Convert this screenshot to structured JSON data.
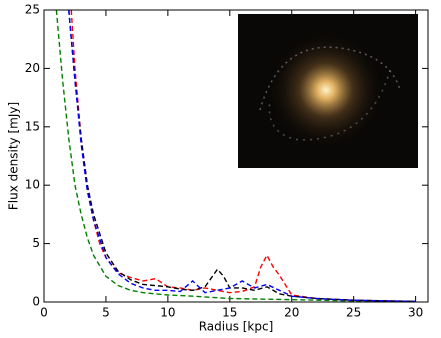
{
  "chart_data": {
    "type": "line",
    "xlabel": "Radius [kpc]",
    "ylabel": "Flux density [mJy]",
    "xlim": [
      0,
      31
    ],
    "ylim": [
      0,
      25
    ],
    "xticks": [
      0,
      5,
      10,
      15,
      20,
      25,
      30
    ],
    "yticks": [
      0,
      5,
      10,
      15,
      20,
      25
    ],
    "linestyle": "dashed",
    "series": [
      {
        "color": "#008000",
        "x": [
          1,
          1.5,
          2,
          2.5,
          3,
          3.5,
          4,
          5,
          6,
          7,
          8,
          10,
          12,
          15,
          20,
          25,
          30
        ],
        "values": [
          25,
          19,
          14,
          10,
          7.5,
          5.5,
          4,
          2.2,
          1.4,
          1.0,
          0.8,
          0.6,
          0.5,
          0.3,
          0.2,
          0.1,
          0.05
        ]
      },
      {
        "color": "#ff0000",
        "x": [
          2.2,
          2.5,
          3,
          3.5,
          4,
          4.5,
          5,
          6,
          7,
          8,
          9,
          10,
          11,
          12,
          13,
          14,
          15,
          16,
          17,
          17.5,
          18,
          18.5,
          19,
          20,
          22,
          25,
          30
        ],
        "values": [
          25,
          20,
          14,
          10,
          7,
          5,
          3.8,
          2.5,
          2.1,
          1.8,
          2,
          1.3,
          1.2,
          1,
          1.2,
          1,
          0.8,
          0.9,
          1.3,
          3,
          4,
          3,
          2.3,
          0.6,
          0.3,
          0.15,
          0.05
        ]
      },
      {
        "color": "#000000",
        "x": [
          2,
          2.5,
          3,
          3.5,
          4,
          5,
          6,
          7,
          8,
          9,
          10,
          11,
          12,
          13,
          14,
          14.5,
          15,
          16,
          17,
          18,
          19,
          20,
          22,
          25,
          30
        ],
        "values": [
          25,
          19,
          14,
          10,
          7.5,
          4.2,
          2.6,
          1.9,
          1.5,
          1.4,
          1.3,
          1.1,
          1,
          1.3,
          2.8,
          2.2,
          1.2,
          1.2,
          1,
          1.3,
          0.7,
          0.5,
          0.3,
          0.15,
          0.05
        ]
      },
      {
        "color": "#0000ff",
        "x": [
          2,
          2.5,
          3,
          3.5,
          4,
          5,
          6,
          7,
          8,
          9,
          10,
          11,
          12,
          13,
          14,
          15,
          16,
          17,
          18,
          19,
          20,
          22,
          25,
          30
        ],
        "values": [
          25,
          19,
          13.5,
          9.5,
          7,
          3.8,
          2.4,
          1.6,
          1.2,
          1,
          1,
          0.9,
          1.8,
          0.8,
          1,
          1.2,
          1.8,
          1.2,
          1.5,
          1.0,
          0.5,
          0.3,
          0.15,
          0.05
        ]
      }
    ]
  }
}
